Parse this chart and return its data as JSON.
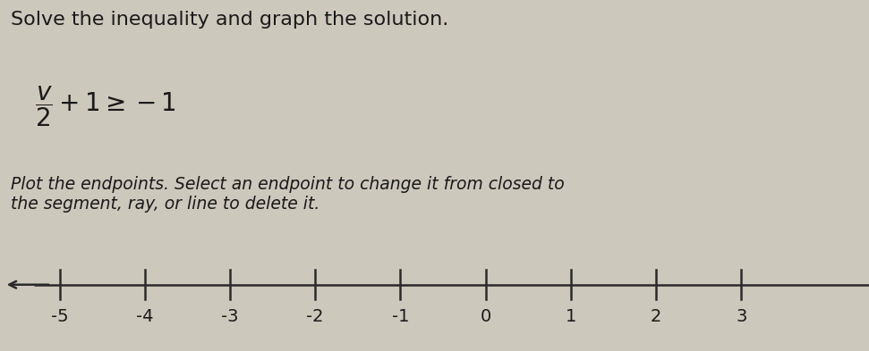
{
  "background_color": "#cdc8bc",
  "title_text": "Solve the inequality and graph the solution.",
  "title_fontsize": 16,
  "title_color": "#1a1a1a",
  "equation_text": "$\\dfrac{v}{2} + 1 \\geq -1$",
  "equation_fontsize": 20,
  "instruction_text": "Plot the endpoints. Select an endpoint to change it from closed to\nthe segment, ray, or line to delete it.",
  "instruction_fontsize": 13.5,
  "numberline_ticks": [
    -5,
    -4,
    -3,
    -2,
    -1,
    0,
    1,
    2,
    3
  ],
  "numberline_xlim": [
    -5.7,
    4.5
  ],
  "numberline_color": "#2a2a2a",
  "tick_color": "#2a2a2a",
  "label_color": "#1a1a1a",
  "label_fontsize": 14,
  "arrow_left": true,
  "line_extends_right": true
}
